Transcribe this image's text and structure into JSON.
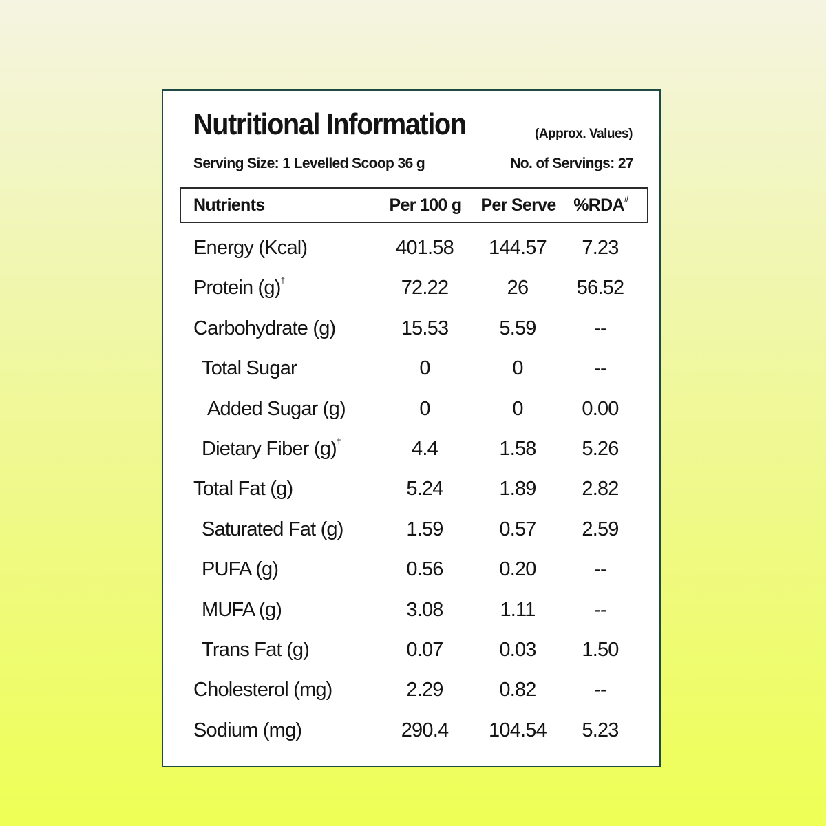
{
  "label": {
    "title": "Nutritional Information",
    "subtitle": "(Approx. Values)",
    "serving_size": "Serving Size: 1 Levelled Scoop 36 g",
    "servings": "No. of Servings: 27",
    "headers": {
      "nutrients": "Nutrients",
      "per_100g": "Per 100 g",
      "per_serve": "Per Serve",
      "rda": "%RDA",
      "rda_mark": "#"
    },
    "rows": [
      {
        "name": "Energy (Kcal)",
        "mark": "",
        "indent": 0,
        "per_100g": "401.58",
        "per_serve": "144.57",
        "rda": "7.23"
      },
      {
        "name": "Protein (g)",
        "mark": "†",
        "indent": 0,
        "per_100g": "72.22",
        "per_serve": "26",
        "rda": "56.52"
      },
      {
        "name": "Carbohydrate (g)",
        "mark": "",
        "indent": 0,
        "per_100g": "15.53",
        "per_serve": "5.59",
        "rda": "--"
      },
      {
        "name": "Total Sugar",
        "mark": "",
        "indent": 1,
        "per_100g": "0",
        "per_serve": "0",
        "rda": "--"
      },
      {
        "name": "Added Sugar (g)",
        "mark": "",
        "indent": 2,
        "per_100g": "0",
        "per_serve": "0",
        "rda": "0.00"
      },
      {
        "name": "Dietary Fiber (g)",
        "mark": "†",
        "indent": 1,
        "per_100g": "4.4",
        "per_serve": "1.58",
        "rda": "5.26"
      },
      {
        "name": "Total Fat (g)",
        "mark": "",
        "indent": 0,
        "per_100g": "5.24",
        "per_serve": "1.89",
        "rda": "2.82"
      },
      {
        "name": "Saturated Fat (g)",
        "mark": "",
        "indent": 1,
        "per_100g": "1.59",
        "per_serve": "0.57",
        "rda": "2.59"
      },
      {
        "name": "PUFA (g)",
        "mark": "",
        "indent": 1,
        "per_100g": "0.56",
        "per_serve": "0.20",
        "rda": "--"
      },
      {
        "name": "MUFA (g)",
        "mark": "",
        "indent": 1,
        "per_100g": "3.08",
        "per_serve": "1.11",
        "rda": "--"
      },
      {
        "name": "Trans Fat (g)",
        "mark": "",
        "indent": 1,
        "per_100g": "0.07",
        "per_serve": "0.03",
        "rda": "1.50"
      },
      {
        "name": "Cholesterol (mg)",
        "mark": "",
        "indent": 0,
        "per_100g": "2.29",
        "per_serve": "0.82",
        "rda": "--"
      },
      {
        "name": "Sodium (mg)",
        "mark": "",
        "indent": 0,
        "per_100g": "290.4",
        "per_serve": "104.54",
        "rda": "5.23"
      }
    ]
  },
  "colors": {
    "panel_border": "#1f4a44",
    "panel_background": "#ffffff",
    "background_top": "#f5f4e2",
    "background_bottom": "#eeff55",
    "text": "#141414"
  }
}
